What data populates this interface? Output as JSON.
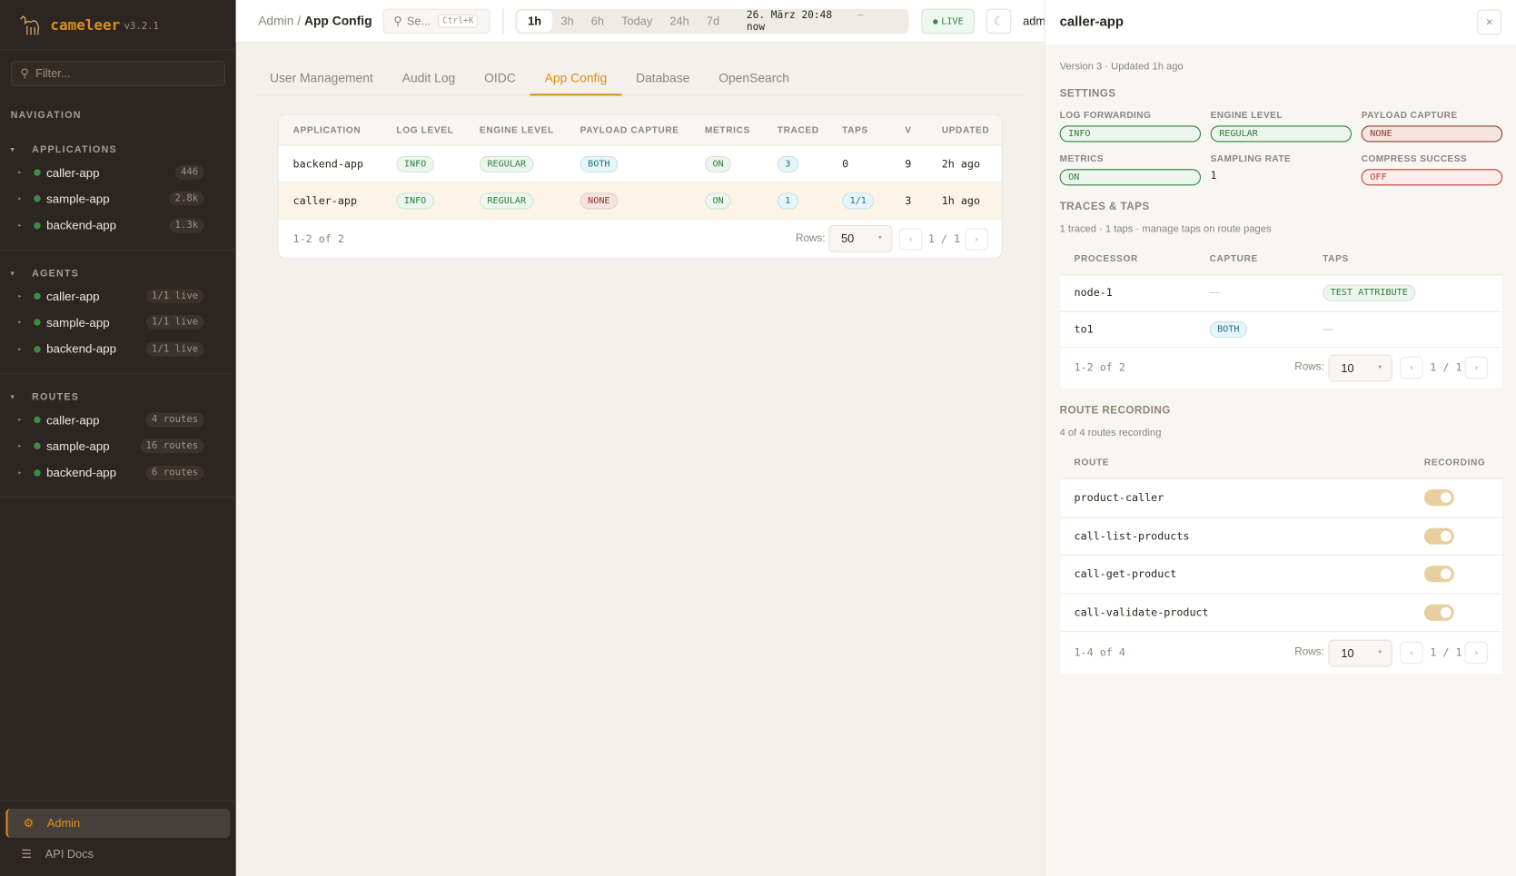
{
  "app": {
    "name": "cameleer",
    "version": "v3.2.1"
  },
  "sidebar": {
    "filter_placeholder": "Filter...",
    "nav_label": "NAVIGATION",
    "sections": [
      {
        "title": "APPLICATIONS",
        "items": [
          {
            "label": "caller-app",
            "badge": "446"
          },
          {
            "label": "sample-app",
            "badge": "2.8k"
          },
          {
            "label": "backend-app",
            "badge": "1.3k"
          }
        ]
      },
      {
        "title": "AGENTS",
        "items": [
          {
            "label": "caller-app",
            "badge": "1/1 live"
          },
          {
            "label": "sample-app",
            "badge": "1/1 live"
          },
          {
            "label": "backend-app",
            "badge": "1/1 live"
          }
        ]
      },
      {
        "title": "ROUTES",
        "items": [
          {
            "label": "caller-app",
            "badge": "4 routes"
          },
          {
            "label": "sample-app",
            "badge": "16 routes"
          },
          {
            "label": "backend-app",
            "badge": "6 routes"
          }
        ]
      }
    ],
    "admin": "Admin",
    "api_docs": "API Docs"
  },
  "topbar": {
    "breadcrumb": [
      "Admin",
      "App Config"
    ],
    "search_placeholder": "Se...",
    "search_shortcut": "Ctrl+K",
    "ranges": [
      "1h",
      "3h",
      "6h",
      "Today",
      "24h",
      "7d"
    ],
    "active_range": "1h",
    "date_from": "26. März 20:48",
    "date_sep": "—",
    "date_to": "now",
    "live": "LIVE",
    "user": "adm"
  },
  "tabs": [
    "User Management",
    "Audit Log",
    "OIDC",
    "App Config",
    "Database",
    "OpenSearch"
  ],
  "active_tab": "App Config",
  "config_table": {
    "columns": [
      "APPLICATION",
      "LOG LEVEL",
      "ENGINE LEVEL",
      "PAYLOAD CAPTURE",
      "METRICS",
      "TRACED",
      "TAPS",
      "V",
      "UPDATED"
    ],
    "rows": [
      {
        "application": "backend-app",
        "log_level": "INFO",
        "engine_level": "REGULAR",
        "payload": "BOTH",
        "metrics": "ON",
        "traced": "3",
        "taps": "0",
        "v": "9",
        "updated": "2h ago"
      },
      {
        "application": "caller-app",
        "log_level": "INFO",
        "engine_level": "REGULAR",
        "payload": "NONE",
        "metrics": "ON",
        "traced": "1",
        "taps": "1/1",
        "v": "3",
        "updated": "1h ago"
      }
    ],
    "range": "1-2 of 2",
    "rows_label": "Rows:",
    "rows_value": "50",
    "page": "1 / 1"
  },
  "panel": {
    "title": "caller-app",
    "close": "×",
    "meta": "Version 3 · Updated 1h  ago",
    "settings_title": "SETTINGS",
    "settings": {
      "log_forwarding": {
        "label": "LOG FORWARDING",
        "value": "INFO"
      },
      "engine_level": {
        "label": "ENGINE LEVEL",
        "value": "REGULAR"
      },
      "payload_capture": {
        "label": "PAYLOAD CAPTURE",
        "value": "NONE"
      },
      "metrics": {
        "label": "METRICS",
        "value": "ON"
      },
      "sampling_rate": {
        "label": "SAMPLING RATE",
        "value": "1"
      },
      "compress_success": {
        "label": "COMPRESS SUCCESS",
        "value": "OFF"
      }
    },
    "traces_title": "TRACES & TAPS",
    "traces_meta": "1 traced · 1 taps · manage taps on route pages",
    "traces_table": {
      "columns": [
        "PROCESSOR",
        "CAPTURE",
        "TAPS"
      ],
      "rows": [
        {
          "processor": "node-1",
          "capture": "—",
          "taps": "TEST ATTRIBUTE"
        },
        {
          "processor": "to1",
          "capture": "BOTH",
          "taps": "—"
        }
      ],
      "range": "1-2 of 2",
      "rows_label": "Rows:",
      "rows_value": "10",
      "page": "1 / 1"
    },
    "routes_title": "ROUTE RECORDING",
    "routes_meta": "4 of 4 routes recording",
    "routes_table": {
      "columns": [
        "ROUTE",
        "RECORDING"
      ],
      "rows": [
        {
          "route": "product-caller",
          "recording": true
        },
        {
          "route": "call-list-products",
          "recording": true
        },
        {
          "route": "call-get-product",
          "recording": true
        },
        {
          "route": "call-validate-product",
          "recording": true
        }
      ],
      "range": "1-4 of 4",
      "rows_label": "Rows:",
      "rows_value": "10",
      "page": "1 / 1"
    }
  },
  "colors": {
    "accent": "#d88f1a",
    "sidebar_bg": "#2c2521",
    "status_green": "#3d8b47"
  }
}
